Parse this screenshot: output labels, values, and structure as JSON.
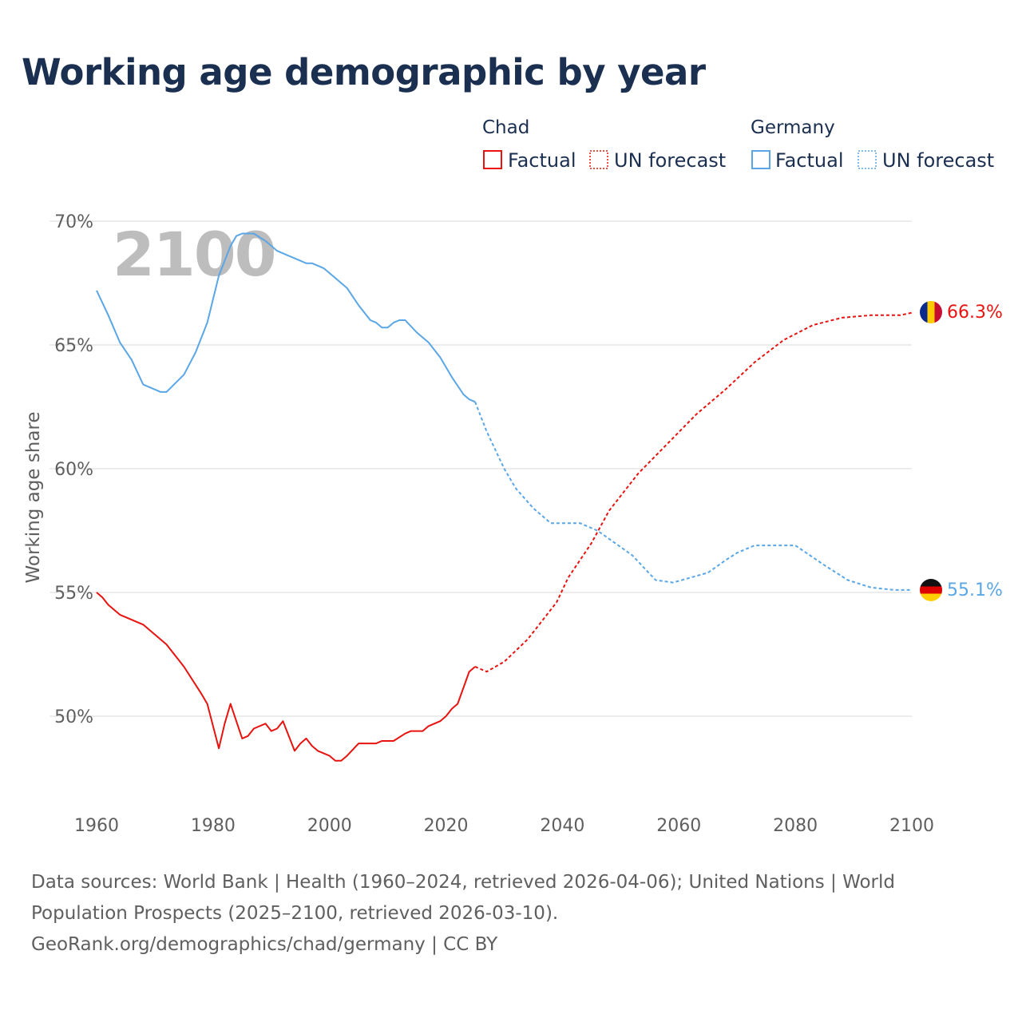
{
  "title": "Working age demographic by year",
  "year_overlay": "2100",
  "legend": {
    "groups": [
      {
        "name": "Chad",
        "color": "#e8130f",
        "factual": "Factual",
        "forecast": "UN forecast"
      },
      {
        "name": "Germany",
        "color": "#5aa6e6",
        "factual": "Factual",
        "forecast": "UN forecast"
      }
    ]
  },
  "end_labels": {
    "chad": "66.3%",
    "germany": "55.1%"
  },
  "flags": {
    "chad": "chad-flag-icon",
    "germany": "germany-flag-icon"
  },
  "footer": {
    "line1": "Data sources: World Bank | Health (1960–2024, retrieved 2026-04-06); United Nations | World",
    "line2": "Population Prospects (2025–2100, retrieved 2026-03-10).",
    "line3": "GeoRank.org/demographics/chad/germany | CC BY"
  },
  "chart_data": {
    "type": "line",
    "title": "Working age demographic by year",
    "xlabel": "",
    "ylabel": "Working age share",
    "xlim": [
      1960,
      2100
    ],
    "ylim": [
      47,
      70
    ],
    "x_ticks": [
      1960,
      1980,
      2000,
      2020,
      2040,
      2060,
      2080,
      2100
    ],
    "x_tick_labels": [
      "1960",
      "1980",
      "2000",
      "2020",
      "2040",
      "2060",
      "2080",
      "2100"
    ],
    "y_ticks": [
      50,
      55,
      60,
      65,
      70
    ],
    "y_tick_labels": [
      "50%",
      "55%",
      "60%",
      "65%",
      "70%"
    ],
    "grid": true,
    "series": [
      {
        "name": "Chad",
        "kind": "Factual",
        "color": "#e8130f",
        "style": "solid",
        "x": [
          1960,
          1961,
          1962,
          1964,
          1968,
          1972,
          1975,
          1978,
          1979,
          1981,
          1982,
          1983,
          1985,
          1986,
          1987,
          1989,
          1990,
          1991,
          1992,
          1994,
          1995,
          1996,
          1997,
          1998,
          2000,
          2001,
          2002,
          2003,
          2005,
          2006,
          2008,
          2009,
          2011,
          2013,
          2014,
          2016,
          2017,
          2019,
          2020,
          2021,
          2022,
          2024,
          2025
        ],
        "values": [
          55.0,
          54.8,
          54.5,
          54.1,
          53.7,
          52.9,
          52.0,
          50.9,
          50.5,
          48.7,
          49.7,
          50.5,
          49.1,
          49.2,
          49.5,
          49.7,
          49.4,
          49.5,
          49.8,
          48.6,
          48.9,
          49.1,
          48.8,
          48.6,
          48.4,
          48.2,
          48.2,
          48.4,
          48.9,
          48.9,
          48.9,
          49.0,
          49.0,
          49.3,
          49.4,
          49.4,
          49.6,
          49.8,
          50.0,
          50.3,
          50.5,
          51.8,
          52.0
        ]
      },
      {
        "name": "Chad",
        "kind": "UN forecast",
        "color": "#e8130f",
        "style": "dotted",
        "x": [
          2025,
          2027,
          2030,
          2034,
          2039,
          2041,
          2045,
          2048,
          2053,
          2058,
          2063,
          2068,
          2073,
          2078,
          2083,
          2088,
          2093,
          2098,
          2100
        ],
        "values": [
          52.0,
          51.8,
          52.2,
          53.1,
          54.6,
          55.6,
          57.0,
          58.3,
          59.8,
          61.0,
          62.2,
          63.2,
          64.3,
          65.2,
          65.8,
          66.1,
          66.2,
          66.2,
          66.3
        ]
      },
      {
        "name": "Germany",
        "kind": "Factual",
        "color": "#5aa6e6",
        "style": "solid",
        "x": [
          1960,
          1962,
          1964,
          1966,
          1968,
          1971,
          1972,
          1975,
          1977,
          1979,
          1981,
          1983,
          1984,
          1985,
          1987,
          1989,
          1991,
          1993,
          1995,
          1996,
          1997,
          1999,
          2001,
          2003,
          2005,
          2007,
          2008,
          2009,
          2010,
          2011,
          2012,
          2013,
          2015,
          2017,
          2019,
          2021,
          2023,
          2024,
          2025
        ],
        "values": [
          67.2,
          66.2,
          65.1,
          64.4,
          63.4,
          63.1,
          63.1,
          63.8,
          64.7,
          65.9,
          67.8,
          69.0,
          69.4,
          69.5,
          69.5,
          69.2,
          68.8,
          68.6,
          68.4,
          68.3,
          68.3,
          68.1,
          67.7,
          67.3,
          66.6,
          66.0,
          65.9,
          65.7,
          65.7,
          65.9,
          66.0,
          66.0,
          65.5,
          65.1,
          64.5,
          63.7,
          63.0,
          62.8,
          62.7
        ]
      },
      {
        "name": "Germany",
        "kind": "UN forecast",
        "color": "#5aa6e6",
        "style": "dotted",
        "x": [
          2025,
          2027,
          2030,
          2032,
          2035,
          2038,
          2043,
          2046,
          2049,
          2052,
          2056,
          2059,
          2062,
          2065,
          2068,
          2070,
          2073,
          2077,
          2080,
          2085,
          2089,
          2093,
          2097,
          2100
        ],
        "values": [
          62.7,
          61.5,
          60.0,
          59.2,
          58.4,
          57.8,
          57.8,
          57.5,
          57.0,
          56.5,
          55.5,
          55.4,
          55.6,
          55.8,
          56.3,
          56.6,
          56.9,
          56.9,
          56.9,
          56.1,
          55.5,
          55.2,
          55.1,
          55.1
        ]
      }
    ]
  }
}
